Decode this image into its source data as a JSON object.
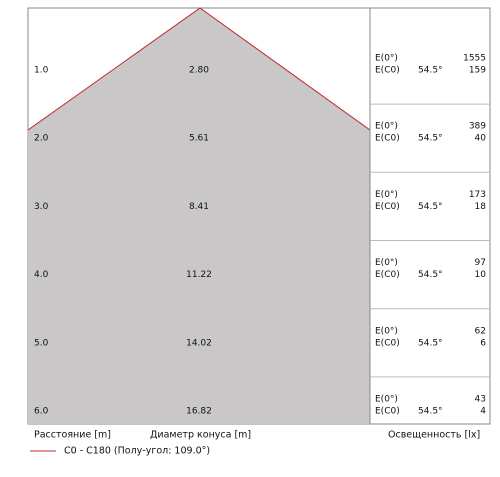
{
  "rows": [
    {
      "distance": "1.0",
      "diameter": "2.80",
      "e0_label": "E(0°)",
      "e0_value": "1555",
      "ec0_label": "E(C0)",
      "angle": "54.5°",
      "ec0_value": "159"
    },
    {
      "distance": "2.0",
      "diameter": "5.61",
      "e0_label": "E(0°)",
      "e0_value": "389",
      "ec0_label": "E(C0)",
      "angle": "54.5°",
      "ec0_value": "40"
    },
    {
      "distance": "3.0",
      "diameter": "8.41",
      "e0_label": "E(0°)",
      "e0_value": "173",
      "ec0_label": "E(C0)",
      "angle": "54.5°",
      "ec0_value": "18"
    },
    {
      "distance": "4.0",
      "diameter": "11.22",
      "e0_label": "E(0°)",
      "e0_value": "97",
      "ec0_label": "E(C0)",
      "angle": "54.5°",
      "ec0_value": "10"
    },
    {
      "distance": "5.0",
      "diameter": "14.02",
      "e0_label": "E(0°)",
      "e0_value": "62",
      "ec0_label": "E(C0)",
      "angle": "54.5°",
      "ec0_value": "6"
    },
    {
      "distance": "6.0",
      "diameter": "16.82",
      "e0_label": "E(0°)",
      "e0_value": "43",
      "ec0_label": "E(C0)",
      "angle": "54.5°",
      "ec0_value": "4"
    }
  ],
  "footer": {
    "distance_label": "Расстояние [m]",
    "diameter_label": "Диаметр конуса [m]",
    "illuminance_label": "Освещенность [lx]"
  },
  "legend": {
    "label": "C0 - C180 (Полу-угол: 109.0°)"
  }
}
